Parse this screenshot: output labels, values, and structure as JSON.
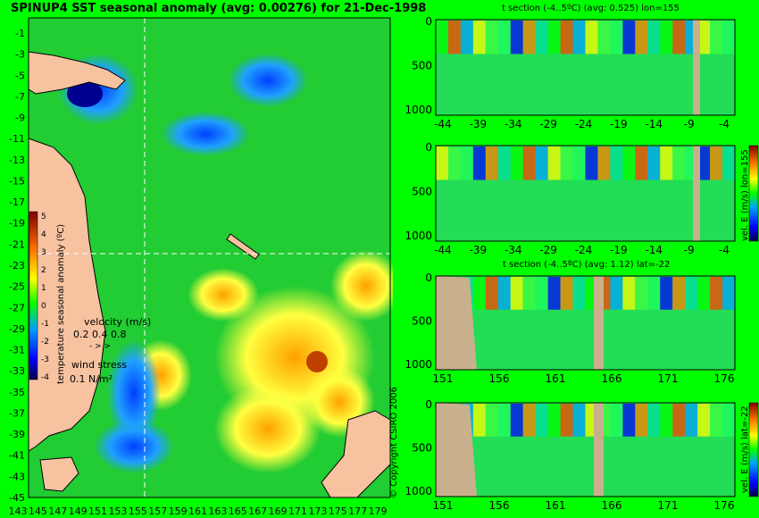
{
  "map": {
    "title": "SPINUP4 SST seasonal anomaly (avg: 0.00276) for 21-Dec-1998",
    "lat_labels": [
      "-1",
      "-3",
      "-5",
      "-7",
      "-9",
      "-11",
      "-13",
      "-15",
      "-17",
      "-19",
      "-21",
      "-23",
      "-25",
      "-27",
      "-29",
      "-31",
      "-33",
      "-35",
      "-37",
      "-39",
      "-41",
      "-43",
      "-45"
    ],
    "lon_labels": [
      "143",
      "145",
      "147",
      "149",
      "151",
      "153",
      "155",
      "157",
      "159",
      "161",
      "163",
      "165",
      "167",
      "169",
      "171",
      "173",
      "175",
      "177",
      "179"
    ],
    "colorbar": {
      "ticks": [
        "5",
        "4",
        "3",
        "2",
        "1",
        "0",
        "-1",
        "-2",
        "-3",
        "-4"
      ],
      "label": "temperature seasonal anomaly (ºC)",
      "range": [
        -4,
        5
      ]
    },
    "velocity_legend": {
      "label": "velocity (m/s)",
      "scale": "0.2 0.4 0.8"
    },
    "wind_legend": {
      "label": "wind stress",
      "scale": "0.1 N/m²"
    },
    "crosshair": {
      "lon": 155,
      "lat": -22
    },
    "colors": {
      "land": "#f7c2a0",
      "ocean_base": "#20cc30"
    }
  },
  "chart_data": [
    {
      "type": "heatmap",
      "title": "t section (-4..5ºC) (avg: 0.525) lon=155",
      "x_ticks": [
        "-44",
        "-39",
        "-34",
        "-29",
        "-24",
        "-19",
        "-14",
        "-9",
        "-4"
      ],
      "y_ticks": [
        "0",
        "500",
        "1000"
      ]
    },
    {
      "type": "heatmap",
      "title": "",
      "x_ticks": [
        "-44",
        "-39",
        "-34",
        "-29",
        "-24",
        "-19",
        "-14",
        "-9",
        "-4"
      ],
      "y_ticks": [
        "0",
        "500",
        "1000"
      ],
      "colorbar_label": "vel. E (m/s) lon=155",
      "colorbar_ticks": [
        "0.4",
        "0.2",
        "0",
        "-0.2",
        "-0.4"
      ]
    },
    {
      "type": "heatmap",
      "title": "t section (-4..5ºC) (avg: 1.12) lat=-22",
      "x_ticks": [
        "151",
        "156",
        "161",
        "166",
        "171",
        "176"
      ],
      "y_ticks": [
        "0",
        "500",
        "1000"
      ]
    },
    {
      "type": "heatmap",
      "title": "",
      "x_ticks": [
        "151",
        "156",
        "161",
        "166",
        "171",
        "176"
      ],
      "y_ticks": [
        "0",
        "500",
        "1000"
      ],
      "colorbar_label": "vel. E (m/s) lat=-22",
      "colorbar_ticks": [
        "0.4",
        "0.2",
        "0",
        "-0.2",
        "-0.4"
      ]
    }
  ],
  "copyright": "© Copyright CSIRO 2006"
}
